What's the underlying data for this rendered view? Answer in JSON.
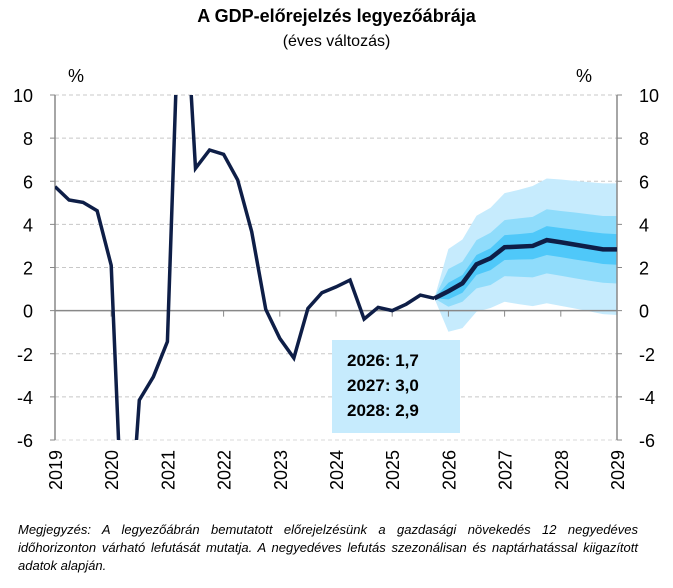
{
  "chart_data": {
    "type": "line",
    "title": "A GDP-előrejelzés legyezőábrája",
    "subtitle": "(éves változás)",
    "ylabel_left": "%",
    "ylabel_right": "%",
    "ylim": [
      -6,
      10
    ],
    "yticks": [
      -6,
      -4,
      -2,
      0,
      2,
      4,
      6,
      8,
      10
    ],
    "xticks": [
      "2019",
      "2020",
      "2021",
      "2022",
      "2023",
      "2024",
      "2025",
      "2026",
      "2027",
      "2028",
      "2029"
    ],
    "grid": true,
    "colors": {
      "line": "#0e1e47",
      "band_outer": "#c6ebfd",
      "band_middle": "#8fdcfb",
      "band_inner": "#4fc8f9",
      "annotation_box": "#c6ebfd"
    },
    "x": [
      "2019Q1",
      "2019Q2",
      "2019Q3",
      "2019Q4",
      "2020Q1",
      "2020Q2",
      "2020Q3",
      "2020Q4",
      "2021Q1",
      "2021Q2",
      "2021Q3",
      "2021Q4",
      "2022Q1",
      "2022Q2",
      "2022Q3",
      "2022Q4",
      "2023Q1",
      "2023Q2",
      "2023Q3",
      "2023Q4",
      "2024Q1",
      "2024Q2",
      "2024Q3",
      "2024Q4",
      "2025Q1",
      "2025Q2",
      "2025Q3",
      "2025Q4",
      "2026Q1",
      "2026Q2",
      "2026Q3",
      "2026Q4",
      "2027Q1",
      "2027Q2",
      "2027Q3",
      "2027Q4",
      "2028Q1",
      "2028Q2",
      "2028Q3",
      "2028Q4",
      "2029Q1"
    ],
    "values": [
      5.75,
      5.13,
      5.02,
      4.63,
      2.1,
      -13.4,
      -4.15,
      -3.07,
      -1.44,
      17.8,
      6.6,
      7.45,
      7.25,
      6.06,
      3.66,
      0.06,
      -1.29,
      -2.2,
      0.1,
      0.83,
      1.1,
      1.42,
      -0.39,
      0.15,
      0.0,
      0.3,
      0.72,
      0.57,
      0.9,
      1.27,
      2.15,
      2.43,
      2.94,
      2.97,
      3.0,
      3.27,
      3.17,
      3.06,
      2.95,
      2.84,
      2.84
    ],
    "fan": {
      "x": [
        "2025Q4",
        "2026Q1",
        "2026Q2",
        "2026Q3",
        "2026Q4",
        "2027Q1",
        "2027Q2",
        "2027Q3",
        "2027Q4",
        "2028Q1",
        "2028Q2",
        "2028Q3",
        "2028Q4",
        "2029Q1"
      ],
      "outer_upper": [
        0.57,
        2.86,
        3.3,
        4.4,
        4.77,
        5.45,
        5.6,
        5.78,
        6.13,
        6.08,
        6.02,
        5.96,
        5.9,
        5.9
      ],
      "outer_lower": [
        0.57,
        -0.98,
        -0.81,
        -0.05,
        0.12,
        0.41,
        0.3,
        0.21,
        0.34,
        0.22,
        0.1,
        -0.03,
        -0.16,
        -0.2
      ],
      "middle_upper": [
        0.57,
        1.93,
        2.27,
        3.27,
        3.61,
        4.2,
        4.28,
        4.35,
        4.7,
        4.62,
        4.55,
        4.47,
        4.39,
        4.39
      ],
      "middle_lower": [
        0.57,
        0.18,
        0.41,
        1.03,
        1.19,
        1.6,
        1.57,
        1.54,
        1.73,
        1.62,
        1.5,
        1.39,
        1.29,
        1.26
      ],
      "inner_upper": [
        0.57,
        1.29,
        1.65,
        2.58,
        2.89,
        3.5,
        3.55,
        3.61,
        3.92,
        3.83,
        3.75,
        3.66,
        3.58,
        3.55
      ],
      "inner_lower": [
        0.57,
        0.52,
        0.83,
        1.65,
        1.88,
        2.35,
        2.37,
        2.38,
        2.58,
        2.48,
        2.37,
        2.27,
        2.16,
        2.13
      ]
    },
    "annotations": [
      "2026: 1,7",
      "2027: 3,0",
      "2028: 2,9"
    ]
  },
  "note": "Megjegyzés: A legyezőábrán bemutatott előrejelzésünk a gazdasági növekedés 12 negyedéves időhorizonton várható lefutását mutatja. A negyedéves lefutás szezonálisan és naptárhatással kiigazított adatok alapján."
}
